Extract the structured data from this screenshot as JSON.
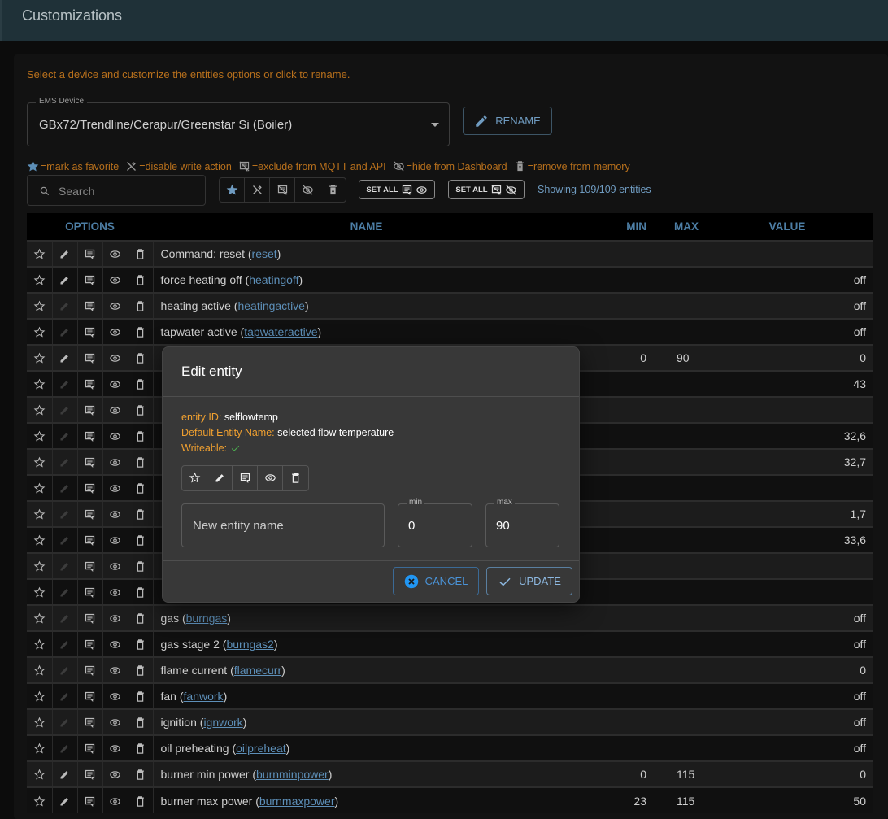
{
  "header": {
    "title": "Customizations"
  },
  "hint": "Select a device and customize the entities options or click to rename.",
  "device_select": {
    "label": "EMS Device",
    "value": "GBx72/Trendline/Cerapur/Greenstar Si (Boiler)"
  },
  "rename_label": "RENAME",
  "legend": {
    "favorite": "=mark as favorite",
    "readonly": "=disable write action",
    "exclude": "=exclude from MQTT and API",
    "hide": "=hide from Dashboard",
    "remove": "=remove from memory"
  },
  "search": {
    "placeholder": "Search"
  },
  "set_all_1": "SET ALL",
  "set_all_2": "SET ALL",
  "showing": "Showing 109/109 entities",
  "table": {
    "headers": {
      "options": "OPTIONS",
      "name": "NAME",
      "min": "MIN",
      "max": "MAX",
      "value": "VALUE"
    },
    "rows": [
      {
        "name": "Command: reset",
        "id": "reset",
        "min": "",
        "max": "",
        "value": "",
        "writeable": true
      },
      {
        "name": "force heating off",
        "id": "heatingoff",
        "min": "",
        "max": "",
        "value": "off",
        "writeable": true
      },
      {
        "name": "heating active",
        "id": "heatingactive",
        "min": "",
        "max": "",
        "value": "off",
        "writeable": false
      },
      {
        "name": "tapwater active",
        "id": "tapwateractive",
        "min": "",
        "max": "",
        "value": "off",
        "writeable": false
      },
      {
        "name": "",
        "id": "",
        "min": "0",
        "max": "90",
        "value": "0",
        "writeable": true
      },
      {
        "name": "",
        "id": "",
        "min": "",
        "max": "",
        "value": "43",
        "writeable": false
      },
      {
        "name": "",
        "id": "",
        "min": "",
        "max": "",
        "value": "",
        "writeable": false
      },
      {
        "name": "",
        "id": "",
        "min": "",
        "max": "",
        "value": "32,6",
        "writeable": false
      },
      {
        "name": "",
        "id": "",
        "min": "",
        "max": "",
        "value": "32,7",
        "writeable": false
      },
      {
        "name": "",
        "id": "",
        "min": "",
        "max": "",
        "value": "",
        "writeable": false
      },
      {
        "name": "",
        "id": "",
        "min": "",
        "max": "",
        "value": "1,7",
        "writeable": false
      },
      {
        "name": "",
        "id": "",
        "min": "",
        "max": "",
        "value": "33,6",
        "writeable": false
      },
      {
        "name": "",
        "id": "",
        "min": "",
        "max": "",
        "value": "",
        "writeable": false
      },
      {
        "name": "",
        "id": "",
        "min": "",
        "max": "",
        "value": "",
        "writeable": false
      },
      {
        "name": "gas",
        "id": "burngas",
        "min": "",
        "max": "",
        "value": "off",
        "writeable": false
      },
      {
        "name": "gas stage 2",
        "id": "burngas2",
        "min": "",
        "max": "",
        "value": "off",
        "writeable": false
      },
      {
        "name": "flame current",
        "id": "flamecurr",
        "min": "",
        "max": "",
        "value": "0",
        "writeable": false
      },
      {
        "name": "fan",
        "id": "fanwork",
        "min": "",
        "max": "",
        "value": "off",
        "writeable": false
      },
      {
        "name": "ignition",
        "id": "ignwork",
        "min": "",
        "max": "",
        "value": "off",
        "writeable": false
      },
      {
        "name": "oil preheating",
        "id": "oilpreheat",
        "min": "",
        "max": "",
        "value": "off",
        "writeable": false
      },
      {
        "name": "burner min power",
        "id": "burnminpower",
        "min": "0",
        "max": "115",
        "value": "0",
        "writeable": true
      },
      {
        "name": "burner max power",
        "id": "burnmaxpower",
        "min": "23",
        "max": "115",
        "value": "50",
        "writeable": true
      }
    ]
  },
  "dialog": {
    "title": "Edit entity",
    "entity_id_label": "entity ID:",
    "entity_id": "selflowtemp",
    "default_name_label": "Default Entity Name:",
    "default_name": "selected flow temperature",
    "writeable_label": "Writeable:",
    "name_placeholder": "New entity name",
    "min_label": "min",
    "min_value": "0",
    "max_label": "max",
    "max_value": "90",
    "cancel": "CANCEL",
    "update": "UPDATE"
  },
  "colors": {
    "accent": "#4a93d8",
    "warning": "#f0a030",
    "link": "#5d8fb8",
    "header_bg": "#1f3138",
    "success": "#4caf50"
  }
}
